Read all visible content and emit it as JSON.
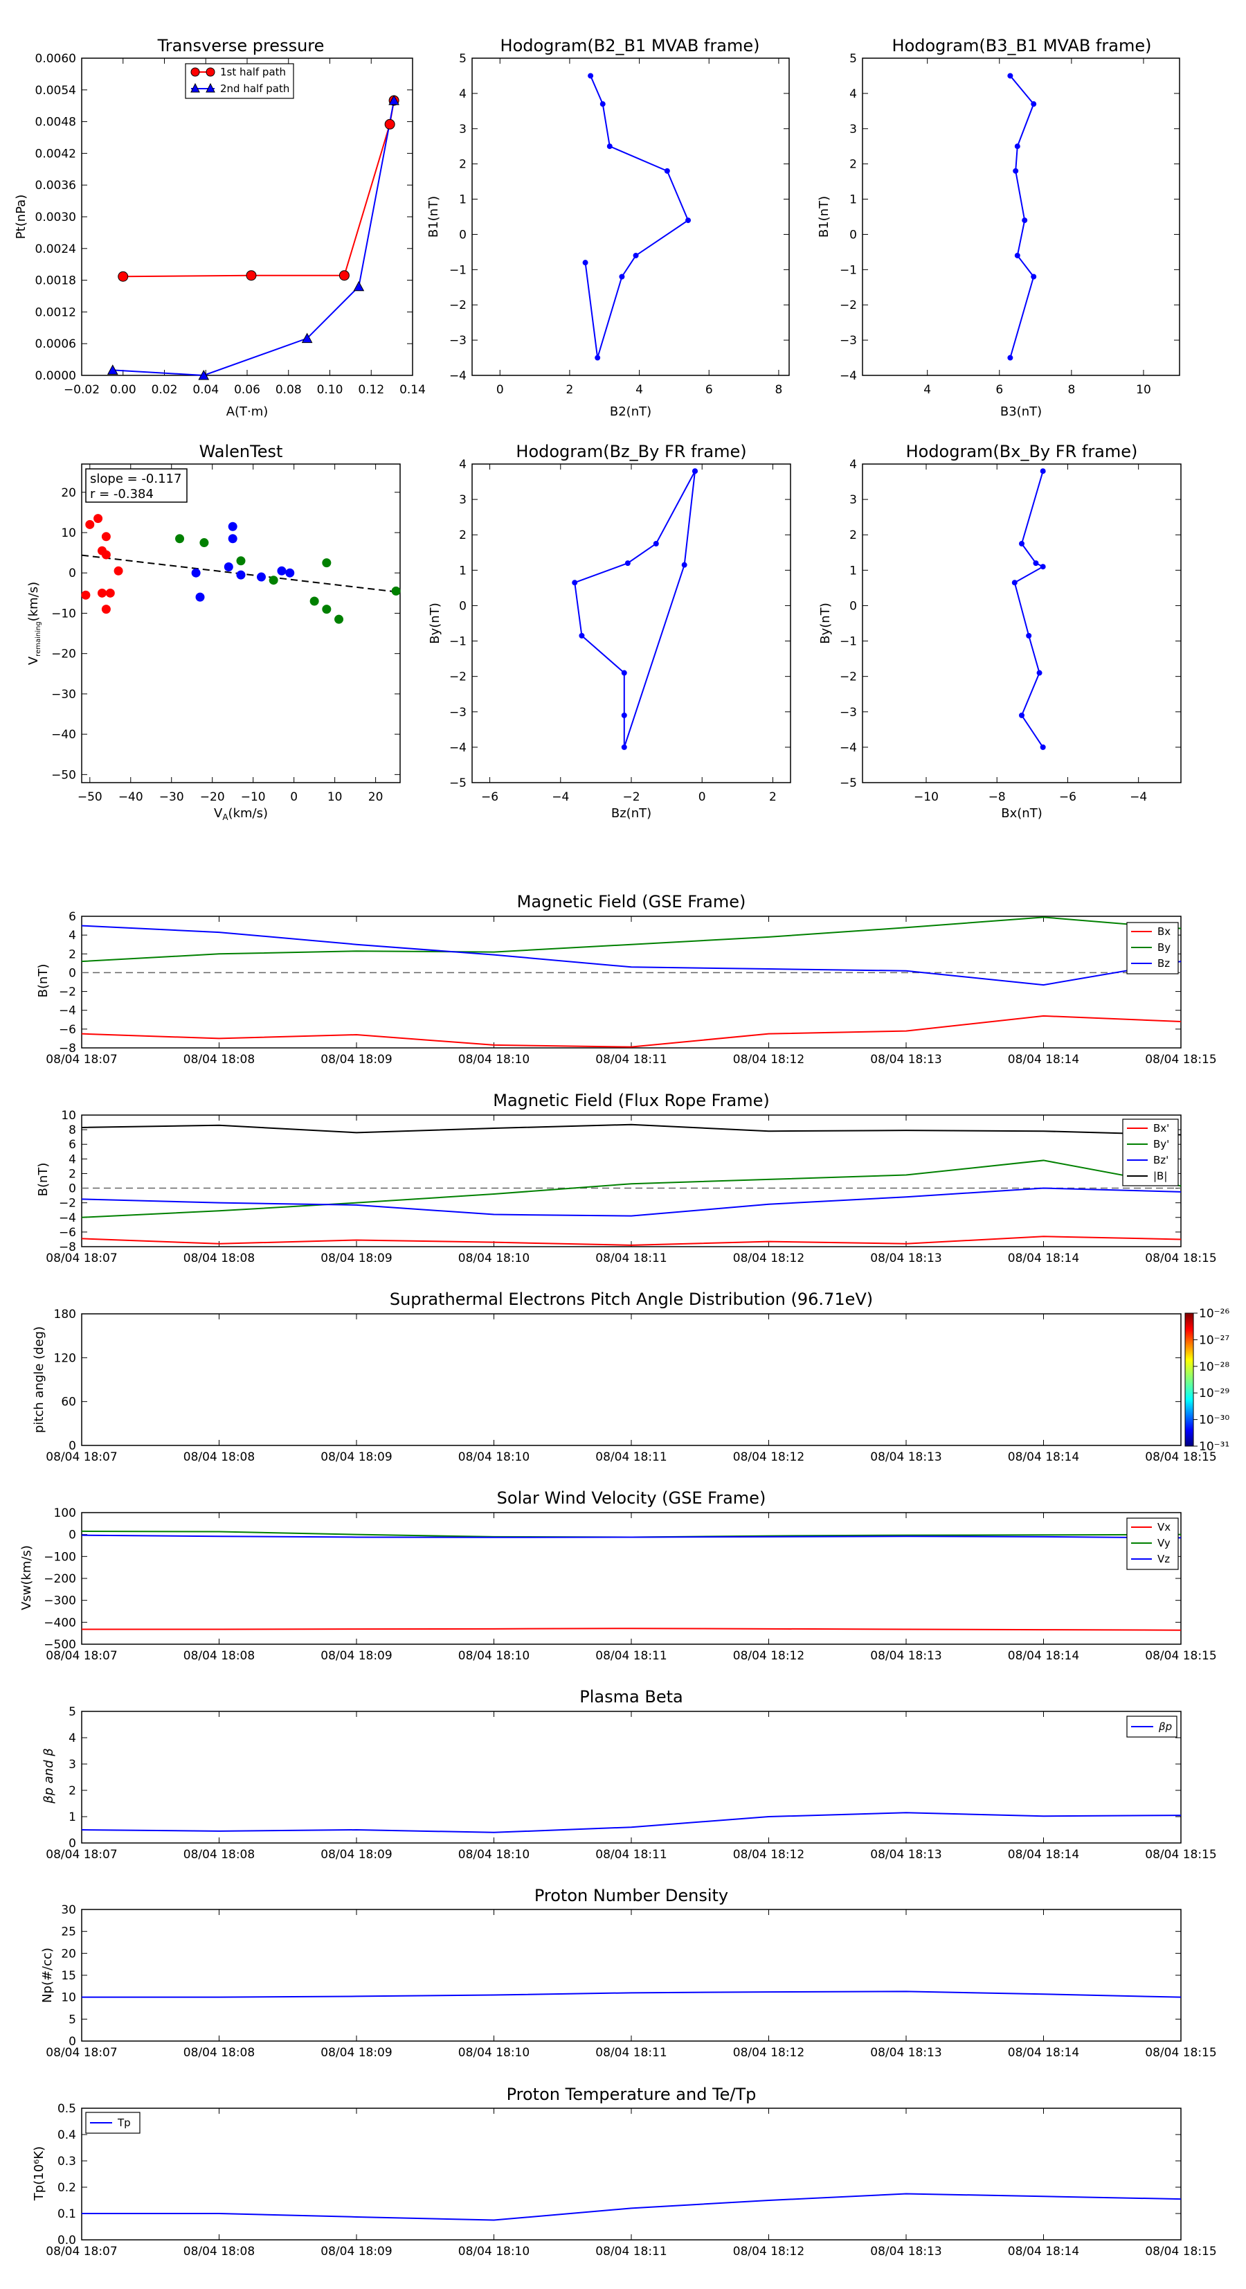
{
  "colors": {
    "red": "#ff0000",
    "green": "#008000",
    "blue": "#0000ff",
    "black": "#000000"
  },
  "panels": {
    "transverse": {
      "title": "Transverse pressure",
      "xlabel": "A(T·m)",
      "ylabel": "Pt(nPa)",
      "xticks": [
        "−0.02",
        "0.00",
        "0.02",
        "0.04",
        "0.06",
        "0.08",
        "0.10",
        "0.12",
        "0.14"
      ],
      "yticks": [
        "0.0000",
        "0.0006",
        "0.0012",
        "0.0018",
        "0.0024",
        "0.0030",
        "0.0036",
        "0.0042",
        "0.0048",
        "0.0054",
        "0.0060"
      ],
      "legend": [
        "1st half path",
        "2nd half path"
      ]
    },
    "hodo_b2b1": {
      "title": "Hodogram(B2_B1 MVAB frame)",
      "xlabel": "B2(nT)",
      "ylabel": "B1(nT)",
      "xticks": [
        "0",
        "2",
        "4",
        "6",
        "8"
      ],
      "yticks": [
        "−4",
        "−3",
        "−2",
        "−1",
        "0",
        "1",
        "2",
        "3",
        "4",
        "5"
      ]
    },
    "hodo_b3b1": {
      "title": "Hodogram(B3_B1 MVAB frame)",
      "xlabel": "B3(nT)",
      "ylabel": "B1(nT)",
      "xticks": [
        "4",
        "6",
        "8",
        "10"
      ],
      "yticks": [
        "−4",
        "−3",
        "−2",
        "−1",
        "0",
        "1",
        "2",
        "3",
        "4",
        "5"
      ]
    },
    "walen": {
      "title": "WalenTest",
      "xlabel": "V",
      "xlabel_sub": "A",
      "xlabel_unit": "(km/s)",
      "ylabel": "V",
      "ylabel_sub": "remaining",
      "ylabel_unit": "(km/s)",
      "xticks": [
        "−50",
        "−40",
        "−30",
        "−20",
        "−10",
        "0",
        "10",
        "20"
      ],
      "yticks": [
        "−50",
        "−40",
        "−30",
        "−20",
        "−10",
        "0",
        "10",
        "20"
      ],
      "annot_slope": "slope = -0.117",
      "annot_r": "r = -0.384"
    },
    "hodo_bzby": {
      "title": "Hodogram(Bz_By FR frame)",
      "xlabel": "Bz(nT)",
      "ylabel": "By(nT)",
      "xticks": [
        "−6",
        "−4",
        "−2",
        "0",
        "2"
      ],
      "yticks": [
        "−5",
        "−4",
        "−3",
        "−2",
        "−1",
        "0",
        "1",
        "2",
        "3",
        "4"
      ]
    },
    "hodo_bxby": {
      "title": "Hodogram(Bx_By FR frame)",
      "xlabel": "Bx(nT)",
      "ylabel": "By(nT)",
      "xticks": [
        "−10",
        "−8",
        "−6",
        "−4"
      ],
      "yticks": [
        "−5",
        "−4",
        "−3",
        "−2",
        "−1",
        "0",
        "1",
        "2",
        "3",
        "4"
      ]
    },
    "mag_gse": {
      "title": "Magnetic Field (GSE Frame)",
      "ylabel": "B(nT)",
      "yticks": [
        "−8",
        "−6",
        "−4",
        "−2",
        "0",
        "2",
        "4",
        "6"
      ],
      "legend": [
        "Bx",
        "By",
        "Bz"
      ]
    },
    "mag_fr": {
      "title": "Magnetic Field (Flux Rope Frame)",
      "ylabel": "B(nT)",
      "yticks": [
        "−8",
        "−6",
        "−4",
        "−2",
        "0",
        "2",
        "4",
        "6",
        "8",
        "10"
      ],
      "legend": [
        "Bx'",
        "By'",
        "Bz'",
        "|B|"
      ]
    },
    "pad": {
      "title": "Suprathermal Electrons Pitch Angle Distribution (96.71eV)",
      "ylabel": "pitch angle (deg)",
      "yticks": [
        "0",
        "60",
        "120",
        "180"
      ],
      "cbar_ticks": [
        "10⁻²⁶",
        "10⁻²⁷",
        "10⁻²⁸",
        "10⁻²⁹",
        "10⁻³⁰",
        "10⁻³¹"
      ]
    },
    "vsw": {
      "title": "Solar Wind Velocity (GSE Frame)",
      "ylabel": "Vsw(km/s)",
      "yticks": [
        "−500",
        "−400",
        "−300",
        "−200",
        "−100",
        "0",
        "100"
      ],
      "legend": [
        "Vx",
        "Vy",
        "Vz"
      ]
    },
    "beta": {
      "title": "Plasma Beta",
      "ylabel": "βp and β",
      "yticks": [
        "0",
        "1",
        "2",
        "3",
        "4",
        "5"
      ],
      "legend": [
        "βp"
      ]
    },
    "np": {
      "title": "Proton Number Density",
      "ylabel": "Np(#/cc)",
      "yticks": [
        "0",
        "5",
        "10",
        "15",
        "20",
        "25",
        "30"
      ]
    },
    "tp": {
      "title": "Proton Temperature and Te/Tp",
      "ylabel": "Tp(10⁶K)",
      "yticks": [
        "0.0",
        "0.1",
        "0.2",
        "0.3",
        "0.4",
        "0.5"
      ],
      "legend": [
        "Tp"
      ]
    }
  },
  "time_ticks": [
    "08/04 18:07",
    "08/04 18:08",
    "08/04 18:09",
    "08/04 18:10",
    "08/04 18:11",
    "08/04 18:12",
    "08/04 18:13",
    "08/04 18:14",
    "08/04 18:15"
  ],
  "chart_data": [
    {
      "type": "line",
      "title": "Transverse pressure",
      "xlabel": "A(T·m)",
      "ylabel": "Pt(nPa)",
      "xlim": [
        -0.02,
        0.14
      ],
      "ylim": [
        0,
        0.006
      ],
      "series": [
        {
          "name": "1st half path",
          "x": [
            0.0,
            0.062,
            0.107,
            0.129,
            0.131
          ],
          "y": [
            0.00187,
            0.00189,
            0.00189,
            0.00475,
            0.0052
          ]
        },
        {
          "name": "2nd half path",
          "x": [
            -0.005,
            0.039,
            0.089,
            0.114,
            0.131
          ],
          "y": [
            0.0001,
            0.0,
            0.0007,
            0.00168,
            0.0052
          ]
        }
      ]
    },
    {
      "type": "line",
      "title": "Hodogram(B2_B1 MVAB frame)",
      "xlabel": "B2(nT)",
      "ylabel": "B1(nT)",
      "xlim": [
        -0.8,
        8.3
      ],
      "ylim": [
        -4,
        5
      ],
      "series": [
        {
          "x": [
            2.6,
            2.95,
            3.15,
            4.8,
            5.4,
            3.9,
            3.5,
            2.8,
            2.45
          ],
          "y": [
            4.5,
            3.7,
            2.5,
            1.8,
            0.4,
            -0.6,
            -1.2,
            -3.5,
            -0.8
          ]
        }
      ]
    },
    {
      "type": "line",
      "title": "Hodogram(B3_B1 MVAB frame)",
      "xlabel": "B3(nT)",
      "ylabel": "B1(nT)",
      "xlim": [
        2.2,
        11
      ],
      "ylim": [
        -4,
        5
      ],
      "series": [
        {
          "x": [
            6.3,
            6.95,
            6.5,
            6.45,
            6.7,
            6.5,
            6.95,
            6.3
          ],
          "y": [
            4.5,
            3.7,
            2.5,
            1.8,
            0.4,
            -0.6,
            -1.2,
            -3.5
          ]
        }
      ]
    },
    {
      "type": "scatter",
      "title": "WalenTest",
      "xlim": [
        -52,
        26
      ],
      "ylim": [
        -52,
        27
      ],
      "slope": -0.117,
      "r": -0.384,
      "series": [
        {
          "color": "red",
          "x": [
            -50,
            -48,
            -47,
            -46,
            -46,
            -45,
            -43,
            -47,
            -51,
            -46
          ],
          "y": [
            12,
            13.5,
            5.5,
            4.5,
            9,
            -5,
            0.5,
            -5,
            -5.5,
            -9
          ]
        },
        {
          "color": "green",
          "x": [
            -28,
            -22,
            -13,
            -5,
            8,
            5,
            8,
            11,
            25
          ],
          "y": [
            8.5,
            7.5,
            3,
            -1.8,
            2.5,
            -7,
            -9,
            -11.5,
            -4.5
          ]
        },
        {
          "color": "blue",
          "x": [
            -15,
            -15,
            -16,
            -13,
            -8,
            -3,
            -1,
            -24,
            -23
          ],
          "y": [
            11.5,
            8.5,
            1.5,
            -0.5,
            -1,
            0.5,
            0,
            0,
            -6
          ]
        }
      ],
      "fit": {
        "x": [
          -52,
          26
        ],
        "y": [
          4.4,
          -4.8
        ]
      }
    },
    {
      "type": "line",
      "title": "Hodogram(Bz_By FR frame)",
      "xlabel": "Bz(nT)",
      "ylabel": "By(nT)",
      "xlim": [
        -6.5,
        2.5
      ],
      "ylim": [
        -5,
        4
      ],
      "series": [
        {
          "x": [
            -0.2,
            -1.3,
            -2.1,
            -3.6,
            -3.4,
            -2.2,
            -2.2,
            -2.2,
            -0.5,
            -0.2
          ],
          "y": [
            3.8,
            1.75,
            1.2,
            0.65,
            -0.85,
            -1.9,
            -3.1,
            -4.0,
            1.15,
            3.8
          ]
        }
      ]
    },
    {
      "type": "line",
      "title": "Hodogram(Bx_By FR frame)",
      "xlabel": "Bx(nT)",
      "ylabel": "By(nT)",
      "xlim": [
        -11.8,
        -2.8
      ],
      "ylim": [
        -5,
        4
      ],
      "series": [
        {
          "x": [
            -6.7,
            -7.3,
            -6.9,
            -6.7,
            -7.5,
            -7.1,
            -6.8,
            -7.3,
            -6.7
          ],
          "y": [
            3.8,
            1.75,
            1.2,
            1.1,
            0.65,
            -0.85,
            -1.9,
            -3.1,
            -4.0
          ]
        }
      ]
    },
    {
      "type": "line",
      "title": "Magnetic Field (GSE Frame)",
      "ylabel": "B(nT)",
      "ylim": [
        -8,
        6
      ],
      "x": [
        0,
        1,
        2,
        3,
        4,
        5,
        6,
        7,
        8
      ],
      "series": [
        {
          "name": "Bx",
          "values": [
            -6.5,
            -7.0,
            -6.6,
            -7.7,
            -7.9,
            -6.5,
            -6.2,
            -4.6,
            -5.2
          ]
        },
        {
          "name": "By",
          "values": [
            1.2,
            2.0,
            2.3,
            2.2,
            3.0,
            3.8,
            4.8,
            5.9,
            4.7
          ]
        },
        {
          "name": "Bz",
          "values": [
            5.0,
            4.3,
            3.0,
            1.9,
            0.6,
            0.4,
            0.2,
            -1.3,
            1.2
          ]
        }
      ]
    },
    {
      "type": "line",
      "title": "Magnetic Field (Flux Rope Frame)",
      "ylabel": "B(nT)",
      "ylim": [
        -8,
        10
      ],
      "x": [
        0,
        1,
        2,
        3,
        4,
        5,
        6,
        7,
        8
      ],
      "series": [
        {
          "name": "Bx'",
          "values": [
            -6.9,
            -7.6,
            -7.1,
            -7.4,
            -7.8,
            -7.3,
            -7.6,
            -6.6,
            -7.0
          ]
        },
        {
          "name": "By'",
          "values": [
            -4.0,
            -3.1,
            -2.0,
            -0.8,
            0.6,
            1.2,
            1.8,
            3.8,
            0.3
          ]
        },
        {
          "name": "Bz'",
          "values": [
            -1.5,
            -2.0,
            -2.3,
            -3.6,
            -3.8,
            -2.2,
            -1.2,
            0.0,
            -0.5
          ]
        },
        {
          "name": "|B|",
          "values": [
            8.3,
            8.6,
            7.6,
            8.2,
            8.7,
            7.8,
            7.9,
            7.8,
            7.3
          ]
        }
      ]
    },
    {
      "type": "heatmap",
      "title": "Suprathermal Electrons Pitch Angle Distribution (96.71eV)",
      "ylabel": "pitch angle (deg)",
      "ylim": [
        0,
        180
      ],
      "values": []
    },
    {
      "type": "line",
      "title": "Solar Wind Velocity (GSE Frame)",
      "ylabel": "Vsw(km/s)",
      "ylim": [
        -500,
        100
      ],
      "x": [
        0,
        1,
        2,
        3,
        4,
        5,
        6,
        7,
        8
      ],
      "series": [
        {
          "name": "Vx",
          "values": [
            -432,
            -432,
            -431,
            -430,
            -428,
            -430,
            -432,
            -434,
            -436
          ]
        },
        {
          "name": "Vy",
          "values": [
            15,
            13,
            0,
            -10,
            -12,
            -6,
            -3,
            -2,
            0
          ]
        },
        {
          "name": "Vz",
          "values": [
            -3,
            -8,
            -12,
            -13,
            -12,
            -10,
            -8,
            -10,
            -15
          ]
        }
      ]
    },
    {
      "type": "line",
      "title": "Plasma Beta",
      "ylabel": "βp and β",
      "ylim": [
        0,
        5
      ],
      "x": [
        0,
        1,
        2,
        3,
        4,
        5,
        6,
        7,
        8
      ],
      "series": [
        {
          "name": "βp",
          "values": [
            0.5,
            0.45,
            0.5,
            0.4,
            0.6,
            1.0,
            1.15,
            1.02,
            1.05
          ]
        }
      ]
    },
    {
      "type": "line",
      "title": "Proton Number Density",
      "ylabel": "Np(#/cc)",
      "ylim": [
        0,
        30
      ],
      "x": [
        0,
        1,
        2,
        3,
        4,
        5,
        6,
        7,
        8
      ],
      "series": [
        {
          "values": [
            10.0,
            10.0,
            10.2,
            10.5,
            11.0,
            11.2,
            11.3,
            10.7,
            10.0
          ]
        }
      ]
    },
    {
      "type": "line",
      "title": "Proton Temperature and Te/Tp",
      "ylabel": "Tp(10⁶K)",
      "ylim": [
        0,
        0.5
      ],
      "x": [
        0,
        1,
        2,
        3,
        4,
        5,
        6,
        7,
        8
      ],
      "series": [
        {
          "name": "Tp",
          "values": [
            0.1,
            0.1,
            0.087,
            0.075,
            0.12,
            0.15,
            0.175,
            0.165,
            0.155
          ]
        }
      ]
    }
  ]
}
